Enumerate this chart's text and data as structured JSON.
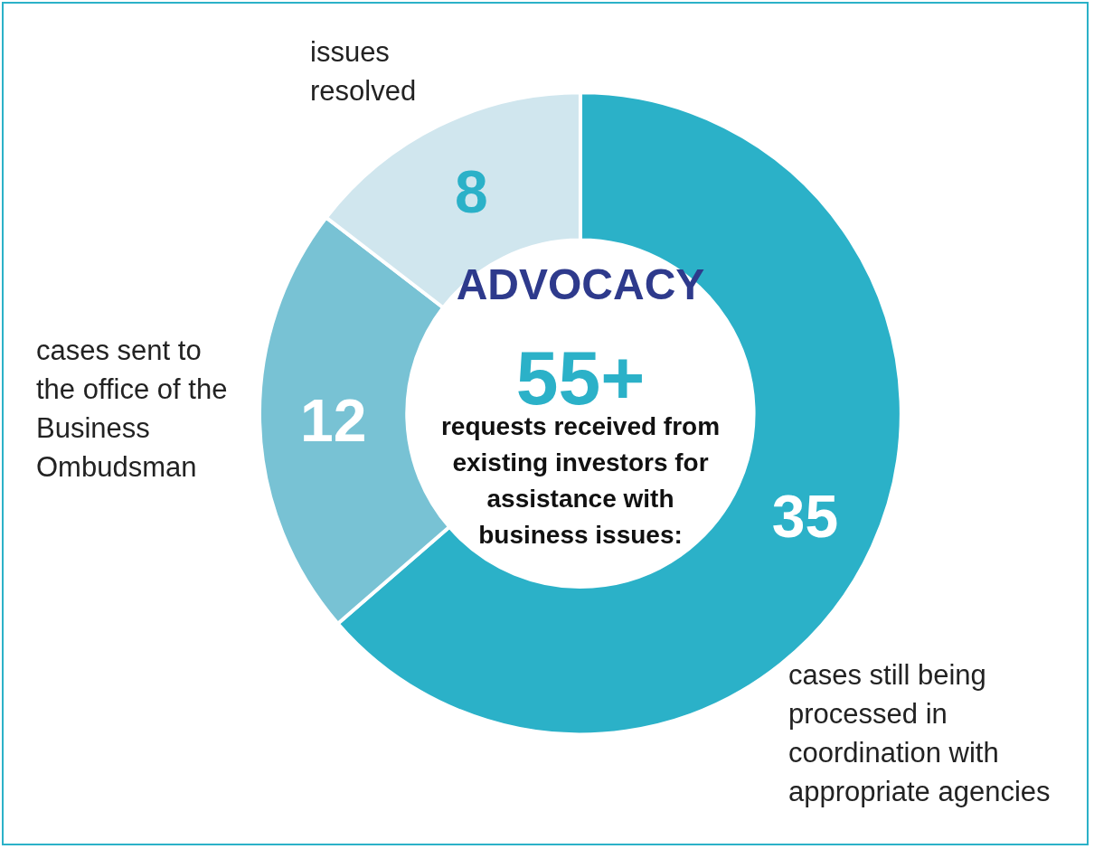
{
  "chart_data": {
    "type": "donut",
    "title": "ADVOCACY",
    "categories": [
      "cases still being processed in coordination with appropriate agencies",
      "cases sent to the office of the Business Ombudsman",
      "issues resolved"
    ],
    "values": [
      35,
      12,
      8
    ],
    "colors": [
      "#2bb1c8",
      "#78c2d4",
      "#d0e6ee"
    ],
    "data_labels": true,
    "legend": false,
    "annotations": [
      "55+",
      "requests received from existing investors for assistance with business issues:"
    ]
  }
}
